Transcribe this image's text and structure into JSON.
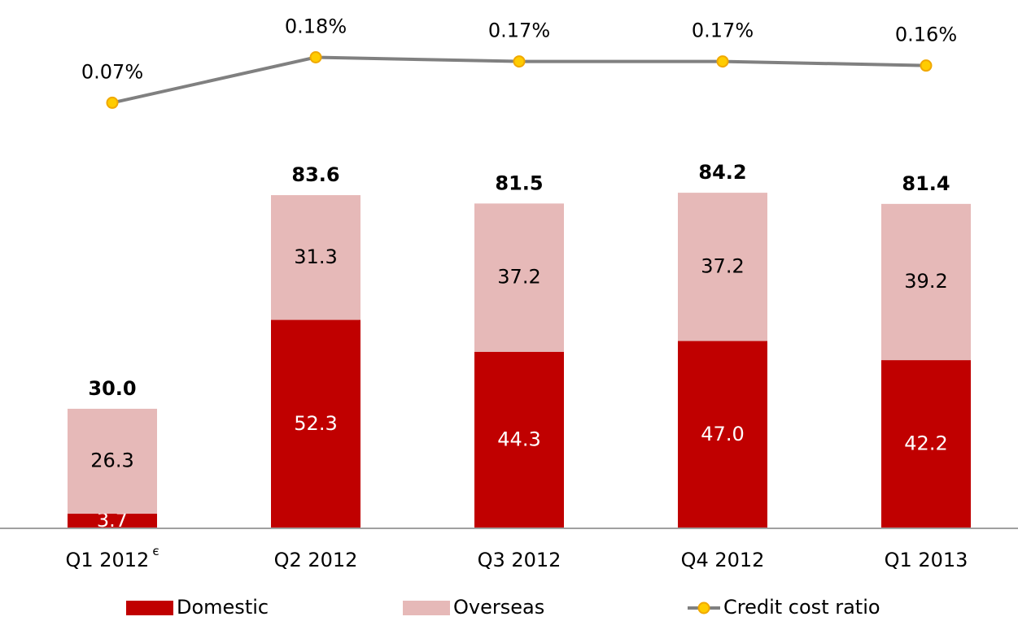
{
  "chart_data": {
    "type": "stacked_bar_line",
    "categories": [
      "Q1 2012",
      "Q2 2012",
      "Q3 2012",
      "Q4 2012",
      "Q1 2013"
    ],
    "category_superscripts": [
      "є",
      null,
      null,
      null,
      null
    ],
    "series": [
      {
        "name": "Domestic",
        "color": "#c00000",
        "values": [
          3.7,
          52.3,
          44.3,
          47.0,
          42.2
        ],
        "value_labels": [
          "3.7",
          "52.3",
          "44.3",
          "47.0",
          "42.2"
        ],
        "label_color": "#ffffff"
      },
      {
        "name": "Overseas",
        "color": "#e6b9b8",
        "values": [
          26.3,
          31.3,
          37.2,
          37.2,
          39.2
        ],
        "value_labels": [
          "26.3",
          "31.3",
          "37.2",
          "37.2",
          "39.2"
        ],
        "label_color": "#000000"
      },
      {
        "name": "Credit cost ratio",
        "type": "line",
        "axis": "y2",
        "color": "#808080",
        "marker_color": "#ffcc00",
        "values": [
          0.07,
          0.18,
          0.17,
          0.17,
          0.16
        ],
        "value_labels": [
          "0.07%",
          "0.18%",
          "0.17%",
          "0.17%",
          "0.16%"
        ]
      }
    ],
    "total_labels": [
      "30.0",
      "83.6",
      "81.5",
      "84.2",
      "81.4"
    ],
    "ylim": [
      0,
      124.4
    ],
    "y2lim": [
      -0.96,
      0.24
    ],
    "legend": "bottom"
  }
}
